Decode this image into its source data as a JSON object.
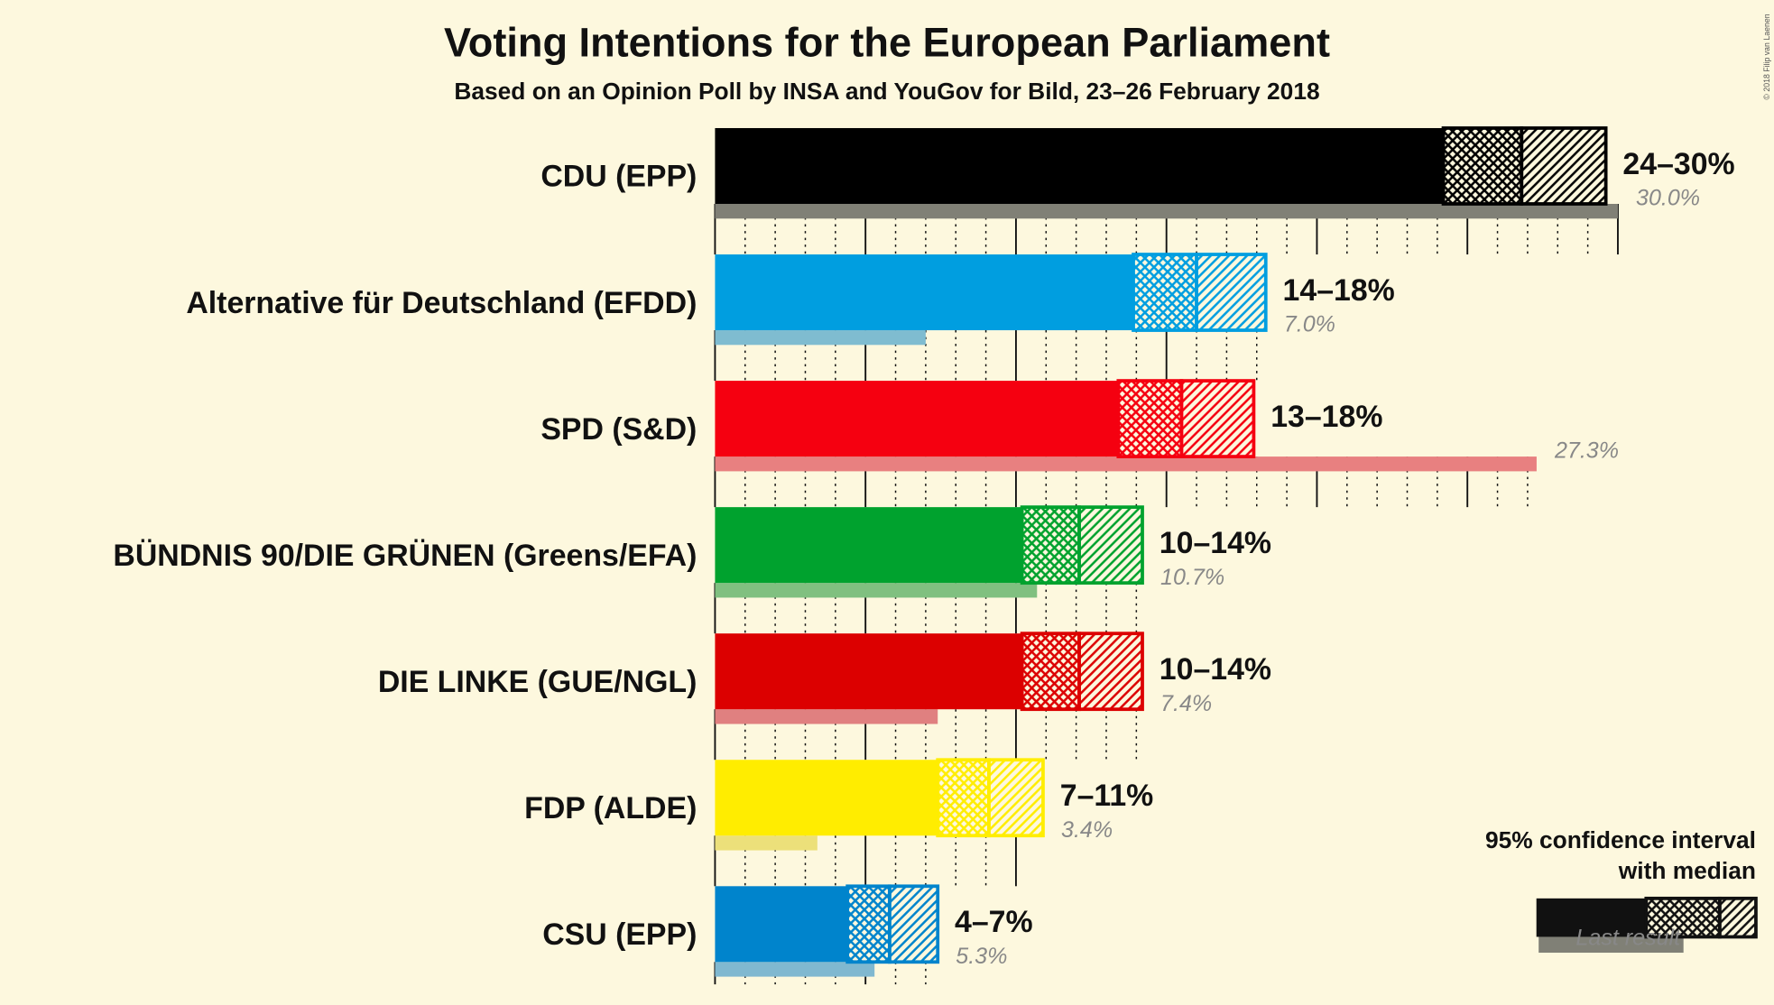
{
  "chart_data": {
    "type": "interval-bar",
    "title": "Voting Intentions for the European Parliament",
    "subtitle": "Based on an Opinion Poll by INSA and YouGov for Bild, 23–26 February 2018",
    "copyright": "© 2018 Filip van Laenen",
    "categories": [
      "CDU (EPP)",
      "Alternative für Deutschland (EFDD)",
      "SPD (S&D)",
      "BÜNDNIS 90/DIE GRÜNEN (Greens/EFA)",
      "DIE LINKE (GUE/NGL)",
      "FDP (ALDE)",
      "CSU (EPP)"
    ],
    "colors": [
      "#000000",
      "#009ee0",
      "#f50010",
      "#00a22e",
      "#dc0000",
      "#ffed00",
      "#0084cc"
    ],
    "last_colors": [
      "#808076",
      "#7fbcd0",
      "#e88080",
      "#80c080",
      "#e08080",
      "#ece07a",
      "#80b8d0"
    ],
    "ci_low": [
      24.2,
      13.9,
      13.4,
      10.2,
      10.2,
      7.4,
      4.4
    ],
    "median": [
      26.8,
      16.0,
      15.5,
      12.1,
      12.1,
      9.1,
      5.8
    ],
    "ci_high": [
      29.6,
      18.3,
      17.9,
      14.2,
      14.2,
      10.9,
      7.4
    ],
    "range_labels": [
      "24–30%",
      "14–18%",
      "13–18%",
      "10–14%",
      "10–14%",
      "7–11%",
      "4–7%"
    ],
    "last_result": [
      30.0,
      7.0,
      27.3,
      10.7,
      7.4,
      3.4,
      5.3
    ],
    "last_result_labels": [
      "30.0%",
      "7.0%",
      "27.3%",
      "10.7%",
      "7.4%",
      "3.4%",
      "5.3%"
    ],
    "xlim": [
      0,
      30
    ],
    "xticks": [
      0,
      5,
      10,
      15,
      20,
      25,
      30
    ],
    "minor_xticks": [
      1,
      2,
      3,
      4,
      6,
      7,
      8,
      9,
      11,
      12,
      13,
      14,
      16,
      17,
      18,
      19,
      21,
      22,
      23,
      24,
      26,
      27,
      28,
      29
    ],
    "legend": {
      "position": "bottom-right",
      "line1": "95% confidence interval",
      "line2": "with median",
      "last": "Last result"
    }
  }
}
